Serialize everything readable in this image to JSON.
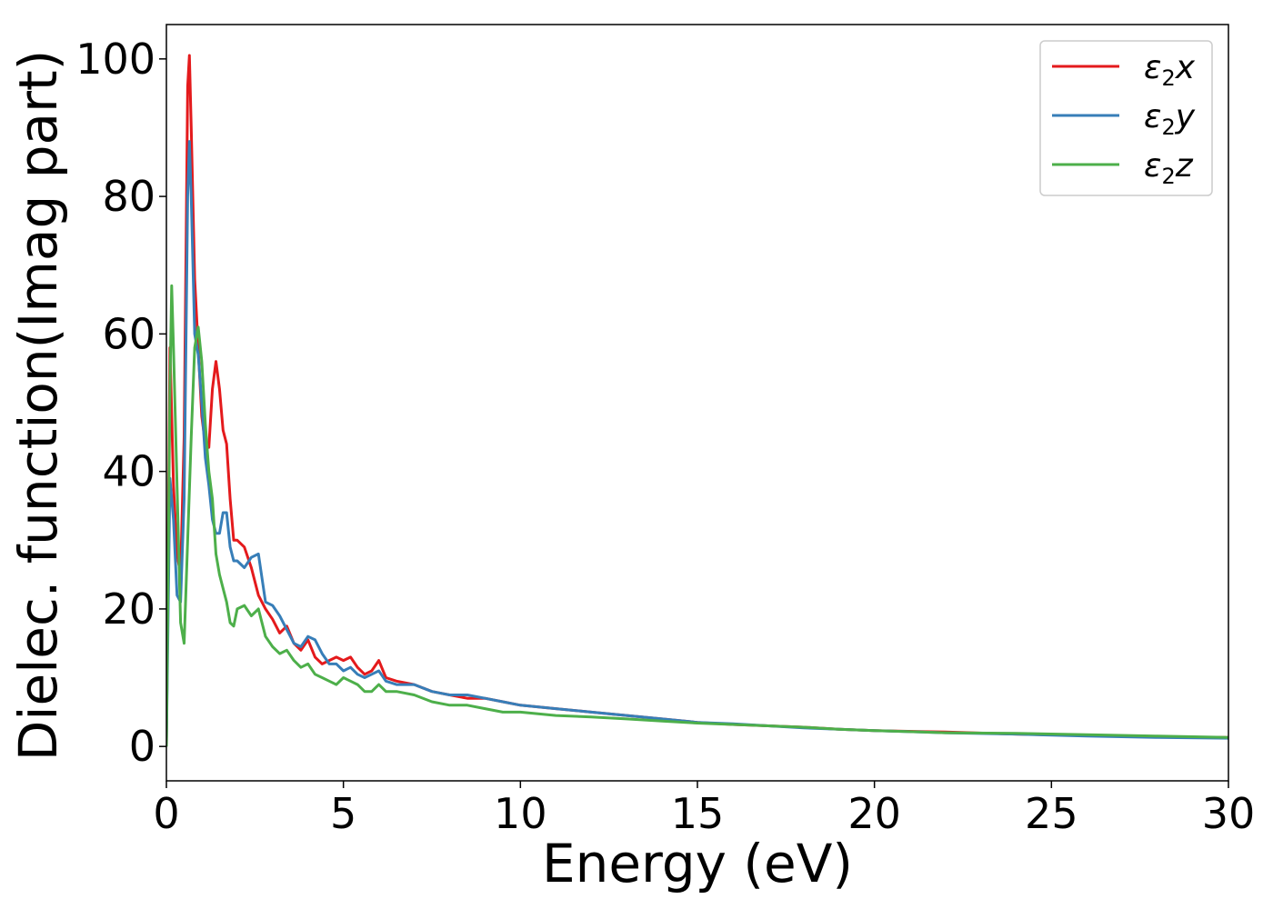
{
  "chart_data": {
    "type": "line",
    "xlabel": "Energy (eV)",
    "ylabel": "Dielec. function(Imag part)",
    "xlim": [
      0,
      30
    ],
    "ylim": [
      -5,
      105
    ],
    "xticks": [
      "0",
      "5",
      "10",
      "15",
      "20",
      "25",
      "30"
    ],
    "yticks": [
      "0",
      "20",
      "40",
      "60",
      "80",
      "100"
    ],
    "grid": false,
    "legend_position": "top-right",
    "series": [
      {
        "name": "ε2x",
        "legend_base": "ε",
        "legend_sub": "2",
        "legend_var": "x",
        "color": "#e41a1c",
        "x": [
          0,
          0.1,
          0.2,
          0.3,
          0.4,
          0.5,
          0.6,
          0.65,
          0.7,
          0.8,
          0.9,
          1.0,
          1.1,
          1.2,
          1.3,
          1.4,
          1.5,
          1.6,
          1.7,
          1.8,
          1.9,
          2.0,
          2.2,
          2.4,
          2.6,
          2.8,
          3.0,
          3.2,
          3.4,
          3.6,
          3.8,
          4.0,
          4.2,
          4.4,
          4.6,
          4.8,
          5.0,
          5.2,
          5.4,
          5.6,
          5.8,
          6.0,
          6.2,
          6.5,
          7.0,
          7.5,
          8.0,
          8.5,
          9.0,
          9.5,
          10,
          11,
          12,
          13,
          14,
          15,
          16,
          17,
          18,
          19,
          20,
          22,
          24,
          26,
          28,
          30
        ],
        "y": [
          0,
          58,
          38,
          28,
          25,
          45,
          96,
          100.5,
          90,
          68,
          58,
          48,
          44,
          43.5,
          52,
          56,
          52,
          46,
          44,
          36,
          30,
          30,
          29,
          26,
          22,
          20,
          18.5,
          16.5,
          17.5,
          15,
          14,
          15.5,
          13,
          12,
          12.5,
          13,
          12.5,
          13,
          11.5,
          10.5,
          11,
          12.5,
          10,
          9.5,
          9,
          8,
          7.5,
          7,
          7,
          6.5,
          6,
          5.5,
          5,
          4.5,
          4,
          3.5,
          3.2,
          3,
          2.8,
          2.5,
          2.3,
          2.1,
          1.8,
          1.6,
          1.4,
          1.3
        ]
      },
      {
        "name": "ε2y",
        "legend_base": "ε",
        "legend_sub": "2",
        "legend_var": "y",
        "color": "#377eb8",
        "x": [
          0,
          0.1,
          0.2,
          0.3,
          0.4,
          0.5,
          0.6,
          0.65,
          0.7,
          0.8,
          0.9,
          1.0,
          1.1,
          1.2,
          1.3,
          1.4,
          1.5,
          1.6,
          1.7,
          1.8,
          1.9,
          2.0,
          2.2,
          2.4,
          2.6,
          2.8,
          3.0,
          3.2,
          3.4,
          3.6,
          3.8,
          4.0,
          4.2,
          4.4,
          4.6,
          4.8,
          5.0,
          5.2,
          5.4,
          5.6,
          5.8,
          6.0,
          6.2,
          6.5,
          7.0,
          7.5,
          8.0,
          8.5,
          9.0,
          9.5,
          10,
          11,
          12,
          13,
          14,
          15,
          16,
          17,
          18,
          19,
          20,
          22,
          24,
          26,
          28,
          30
        ],
        "y": [
          0,
          39,
          33,
          22,
          21,
          36,
          80,
          88,
          80,
          60,
          57,
          50,
          42,
          38,
          33,
          31,
          31,
          34,
          34,
          29,
          27,
          27,
          26,
          27.5,
          28,
          21,
          20.5,
          19,
          17,
          15,
          14.5,
          16,
          15.5,
          13.5,
          12,
          12,
          11,
          11.5,
          10.5,
          10,
          10.5,
          11,
          9.5,
          9,
          9,
          8,
          7.5,
          7.5,
          7,
          6.5,
          6,
          5.5,
          5,
          4.5,
          4,
          3.5,
          3.3,
          3.0,
          2.7,
          2.5,
          2.3,
          2.0,
          1.8,
          1.5,
          1.3,
          1.2
        ]
      },
      {
        "name": "ε2z",
        "legend_base": "ε",
        "legend_sub": "2",
        "legend_var": "z",
        "color": "#4daf4a",
        "x": [
          0,
          0.1,
          0.15,
          0.2,
          0.3,
          0.4,
          0.5,
          0.6,
          0.7,
          0.8,
          0.9,
          1.0,
          1.1,
          1.2,
          1.3,
          1.4,
          1.5,
          1.6,
          1.7,
          1.8,
          1.9,
          2.0,
          2.2,
          2.4,
          2.6,
          2.8,
          3.0,
          3.2,
          3.4,
          3.6,
          3.8,
          4.0,
          4.2,
          4.4,
          4.6,
          4.8,
          5.0,
          5.2,
          5.4,
          5.6,
          5.8,
          6.0,
          6.2,
          6.5,
          7.0,
          7.5,
          8.0,
          8.5,
          9.0,
          9.5,
          10,
          11,
          12,
          13,
          14,
          15,
          16,
          17,
          18,
          19,
          20,
          22,
          24,
          26,
          28,
          30
        ],
        "y": [
          0,
          52,
          67,
          58,
          38,
          18,
          15,
          30,
          45,
          58,
          61,
          56,
          47,
          40,
          36,
          28,
          25,
          23,
          21,
          18,
          17.5,
          20,
          20.5,
          19,
          20,
          16,
          14.5,
          13.5,
          14,
          12.5,
          11.5,
          12,
          10.5,
          10,
          9.5,
          9,
          10,
          9.5,
          9,
          8,
          8,
          9,
          8,
          8,
          7.5,
          6.5,
          6,
          6,
          5.5,
          5,
          5,
          4.5,
          4.3,
          4,
          3.7,
          3.4,
          3.2,
          3.0,
          2.8,
          2.5,
          2.3,
          2.0,
          1.9,
          1.7,
          1.5,
          1.3
        ]
      }
    ]
  }
}
